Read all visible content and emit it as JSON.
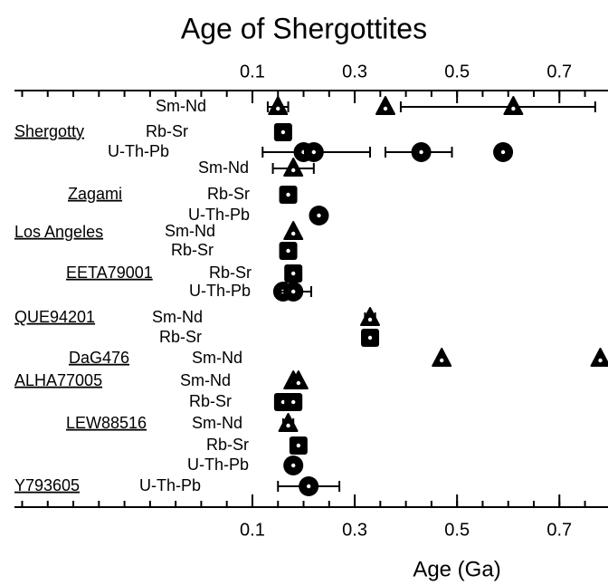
{
  "chart_data": {
    "type": "dot",
    "title": "Age of Shergottites",
    "xlabel": "Age (Ga)",
    "xlim": [
      -0.365,
      0.795
    ],
    "xticks": [
      0.1,
      0.3,
      0.5,
      0.7
    ],
    "xminorticks": [
      -0.35,
      -0.3,
      -0.25,
      -0.2,
      -0.15,
      -0.1,
      -0.05,
      0,
      0.05,
      0.1,
      0.15,
      0.2,
      0.25,
      0.3,
      0.35,
      0.4,
      0.45,
      0.5,
      0.55,
      0.6,
      0.65,
      0.7,
      0.75
    ],
    "color": "#000000",
    "markers": {
      "Sm-Nd": "triangle",
      "Rb-Sr": "square",
      "U-Th-Pb": "circle"
    },
    "meteorites": [
      "Shergotty",
      "Zagami",
      "Los Angeles",
      "EETA79001",
      "QUE94201",
      "DaG476",
      "ALHA77005",
      "LEW88516",
      "Y793605"
    ],
    "rows": [
      {
        "method": "Sm-Nd",
        "points": [
          {
            "value": 0.15,
            "error": [
              0.02,
              0.02
            ]
          },
          {
            "value": 0.36
          },
          {
            "value": 0.61,
            "error": [
              0.22,
              0.16
            ]
          }
        ]
      },
      {
        "method": "Rb-Sr",
        "points": [
          {
            "value": 0.16
          }
        ]
      },
      {
        "method": "U-Th-Pb",
        "points": [
          {
            "value": 0.2,
            "error": [
              0.08,
              0.13
            ]
          },
          {
            "value": 0.22
          },
          {
            "value": 0.43,
            "error": [
              0.07,
              0.06
            ]
          },
          {
            "value": 0.59
          }
        ]
      },
      {
        "method": "Sm-Nd",
        "points": [
          {
            "value": 0.18,
            "error": [
              0.04,
              0.04
            ]
          }
        ]
      },
      {
        "method": "Rb-Sr",
        "points": [
          {
            "value": 0.17
          }
        ]
      },
      {
        "method": "U-Th-Pb",
        "points": [
          {
            "value": 0.23
          }
        ]
      },
      {
        "method": "Sm-Nd",
        "points": [
          {
            "value": 0.18
          }
        ]
      },
      {
        "method": "Rb-Sr",
        "points": [
          {
            "value": 0.17
          }
        ]
      },
      {
        "method": "Rb-Sr",
        "points": [
          {
            "value": 0.18
          }
        ]
      },
      {
        "method": "U-Th-Pb",
        "points": [
          {
            "value": 0.16
          },
          {
            "value": 0.18,
            "error": [
              0.035,
              0.035
            ]
          }
        ]
      },
      {
        "method": "Sm-Nd",
        "points": [
          {
            "value": 0.33,
            "error": [
              0.01,
              0.01
            ]
          }
        ]
      },
      {
        "method": "Rb-Sr",
        "points": [
          {
            "value": 0.33
          }
        ]
      },
      {
        "method": "Sm-Nd",
        "points": [
          {
            "value": 0.47
          },
          {
            "value": 0.78
          }
        ]
      },
      {
        "method": "Sm-Nd",
        "points": [
          {
            "value": 0.18
          },
          {
            "value": 0.19
          }
        ]
      },
      {
        "method": "Rb-Sr",
        "points": [
          {
            "value": 0.16
          },
          {
            "value": 0.18
          }
        ]
      },
      {
        "method": "Sm-Nd",
        "points": [
          {
            "value": 0.17,
            "error": [
              0.01,
              0.01
            ]
          }
        ]
      },
      {
        "method": "Rb-Sr",
        "points": [
          {
            "value": 0.19
          }
        ]
      },
      {
        "method": "U-Th-Pb",
        "points": [
          {
            "value": 0.18
          }
        ]
      },
      {
        "method": "U-Th-Pb",
        "points": [
          {
            "value": 0.21,
            "error": [
              0.06,
              0.06
            ]
          }
        ]
      }
    ]
  }
}
